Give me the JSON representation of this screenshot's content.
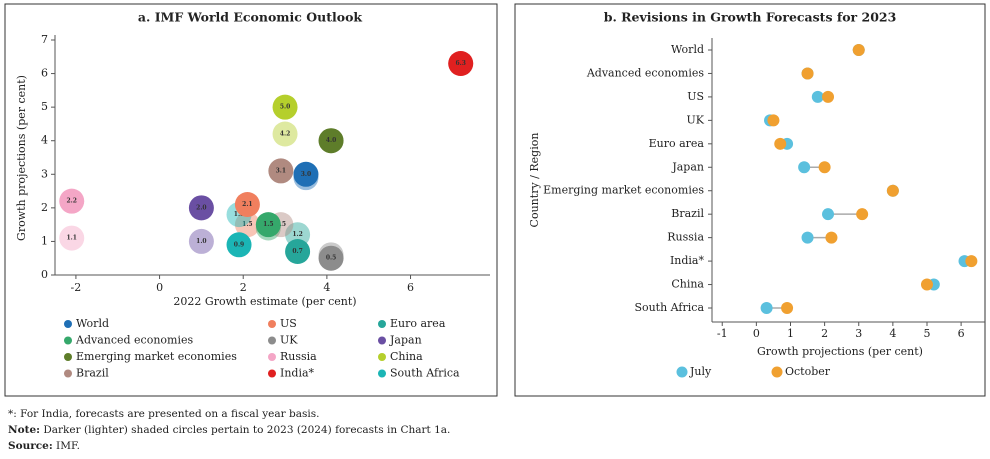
{
  "chart_data": [
    {
      "type": "bubble-scatter",
      "title": "a. IMF World Economic Outlook",
      "x_label": "2022 Growth estimate (per cent)",
      "y_label": "Growth projections (per cent)",
      "xlim": [
        -2.5,
        7.9
      ],
      "xticks": [
        -2,
        0,
        2,
        4,
        6
      ],
      "ylim": [
        0,
        7
      ],
      "yticks": [
        0,
        1,
        2,
        3,
        4,
        5,
        6,
        7
      ],
      "series": [
        {
          "name": "World",
          "color": "#1f6fb5",
          "x": [
            3.5,
            3.5
          ],
          "values": [
            3.0,
            2.9
          ],
          "value_labels": [
            "3.0",
            "2.9"
          ]
        },
        {
          "name": "US",
          "color": "#f07f5e",
          "x": [
            2.1,
            2.1
          ],
          "values": [
            2.1,
            1.5
          ],
          "value_labels": [
            "2.1",
            "1.5"
          ]
        },
        {
          "name": "Euro area",
          "color": "#26a69a",
          "x": [
            3.3,
            3.3
          ],
          "values": [
            0.7,
            1.2
          ],
          "value_labels": [
            "0.7",
            "1.2"
          ]
        },
        {
          "name": "Advanced economies",
          "color": "#35a86b",
          "x": [
            2.6,
            2.6
          ],
          "values": [
            1.5,
            1.4
          ],
          "value_labels": [
            "1.5",
            "1.4"
          ]
        },
        {
          "name": "UK",
          "color": "#8c8c8c",
          "x": [
            4.1,
            4.1
          ],
          "values": [
            0.5,
            0.6
          ],
          "value_labels": [
            "0.5",
            "0.6"
          ]
        },
        {
          "name": "Japan",
          "color": "#6a4fa3",
          "x": [
            1.0,
            1.0
          ],
          "values": [
            2.0,
            1.0
          ],
          "value_labels": [
            "2.0",
            "1.0"
          ]
        },
        {
          "name": "Emerging market economies",
          "color": "#5e7d2a",
          "x": [
            4.1,
            4.1
          ],
          "values": [
            4.0,
            4.0
          ],
          "value_labels": [
            "4.0",
            "4.0"
          ]
        },
        {
          "name": "Russia",
          "color": "#f4a6c6",
          "x": [
            -2.1,
            -2.1
          ],
          "values": [
            2.2,
            1.1
          ],
          "value_labels": [
            "2.2",
            "1.1"
          ]
        },
        {
          "name": "China",
          "color": "#b5cf2c",
          "x": [
            3.0,
            3.0
          ],
          "values": [
            5.0,
            4.2
          ],
          "value_labels": [
            "5.0",
            "4.2"
          ]
        },
        {
          "name": "Brazil",
          "color": "#b08a80",
          "x": [
            2.9,
            2.9
          ],
          "values": [
            3.1,
            1.5
          ],
          "value_labels": [
            "3.1",
            "1.5"
          ]
        },
        {
          "name": "India*",
          "color": "#e02020",
          "x": [
            7.2,
            7.2
          ],
          "values": [
            6.3,
            6.3
          ],
          "value_labels": [
            "6.3",
            "6.3"
          ]
        },
        {
          "name": "South Africa",
          "color": "#1bb5b5",
          "x": [
            1.9,
            1.9
          ],
          "values": [
            0.9,
            1.8
          ],
          "value_labels": [
            "0.9",
            "1.8"
          ]
        }
      ]
    },
    {
      "type": "dumbbell",
      "title": "b. Revisions in Growth Forecasts for 2023",
      "x_label": "Growth projections (per cent)",
      "y_label": "Country / Region",
      "xlim": [
        -1.3,
        6.7
      ],
      "xticks": [
        -1,
        0,
        1,
        2,
        3,
        4,
        5,
        6
      ],
      "categories": [
        "World",
        "Advanced economies",
        "US",
        "UK",
        "Euro area",
        "Japan",
        "Emerging market economies",
        "Brazil",
        "Russia",
        "India*",
        "China",
        "South Africa"
      ],
      "series": [
        {
          "name": "July",
          "color": "#5bc0de",
          "values": [
            3.0,
            1.5,
            1.8,
            0.4,
            0.9,
            1.4,
            4.0,
            2.1,
            1.5,
            6.1,
            5.2,
            0.3
          ]
        },
        {
          "name": "October",
          "color": "#f0a030",
          "values": [
            3.0,
            1.5,
            2.1,
            0.5,
            0.7,
            2.0,
            4.0,
            3.1,
            2.2,
            6.3,
            5.0,
            0.9
          ]
        }
      ]
    }
  ],
  "footnotes": [
    "*: For India, forecasts are presented on a fiscal year basis."
  ],
  "note": {
    "label": "Note:",
    "text": " Darker (lighter) shaded circles pertain to 2023 (2024) forecasts in Chart 1a."
  },
  "source": {
    "label": "Source:",
    "text": " IMF."
  }
}
